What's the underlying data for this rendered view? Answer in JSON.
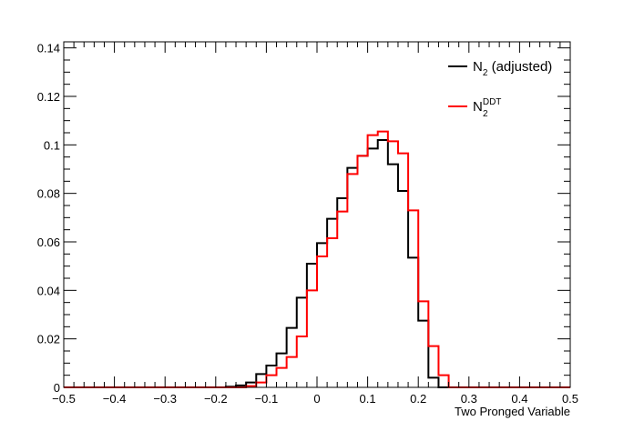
{
  "chart_data": {
    "type": "step",
    "xlabel": "Two Pronged Variable",
    "ylabel": "",
    "xlim": [
      -0.5,
      0.5
    ],
    "ylim": [
      0,
      0.1425
    ],
    "x_major_ticks": [
      -0.5,
      -0.4,
      -0.3,
      -0.2,
      -0.1,
      0,
      0.1,
      0.2,
      0.3,
      0.4,
      0.5
    ],
    "x_tick_labels": [
      "−0.5",
      "−0.4",
      "−0.3",
      "−0.2",
      "−0.1",
      "0",
      "0.1",
      "0.2",
      "0.3",
      "0.4",
      "0.5"
    ],
    "y_major_ticks": [
      0,
      0.02,
      0.04,
      0.06,
      0.08,
      0.1,
      0.12,
      0.14
    ],
    "y_tick_labels": [
      "0",
      "0.02",
      "0.04",
      "0.06",
      "0.08",
      "0.1",
      "0.12",
      "0.14"
    ],
    "grid": false,
    "legend_placement": "top-right",
    "bin_edges_start": -0.5,
    "bin_width": 0.02,
    "series": [
      {
        "name": "N2 (adjusted)",
        "legend": {
          "base": "N",
          "sub": "2",
          "sup": "",
          "suffix": " (adjusted)"
        },
        "color": "#000000",
        "values": [
          0,
          0,
          0,
          0,
          0,
          0,
          0,
          0,
          0,
          0,
          0,
          0,
          0,
          0,
          0,
          0,
          0.0003,
          0.0008,
          0.002,
          0.0055,
          0.009,
          0.014,
          0.0245,
          0.037,
          0.051,
          0.0595,
          0.0695,
          0.078,
          0.0905,
          0.0955,
          0.0985,
          0.102,
          0.092,
          0.081,
          0.0535,
          0.0275,
          0.004,
          0,
          0,
          0,
          0,
          0,
          0,
          0,
          0,
          0,
          0,
          0,
          0,
          0
        ]
      },
      {
        "name": "N2DDT",
        "legend": {
          "base": "N",
          "sub": "2",
          "sup": "DDT",
          "suffix": ""
        },
        "color": "#ff0000",
        "values": [
          0,
          0,
          0,
          0,
          0,
          0,
          0,
          0,
          0,
          0,
          0,
          0,
          0,
          0,
          0,
          0,
          0,
          0,
          0.0005,
          0.002,
          0.005,
          0.008,
          0.0125,
          0.021,
          0.04,
          0.054,
          0.0615,
          0.0725,
          0.088,
          0.0955,
          0.104,
          0.1055,
          0.1015,
          0.0965,
          0.073,
          0.0355,
          0.017,
          0.005,
          0,
          0,
          0,
          0,
          0,
          0,
          0,
          0,
          0,
          0,
          0,
          0
        ]
      }
    ]
  }
}
